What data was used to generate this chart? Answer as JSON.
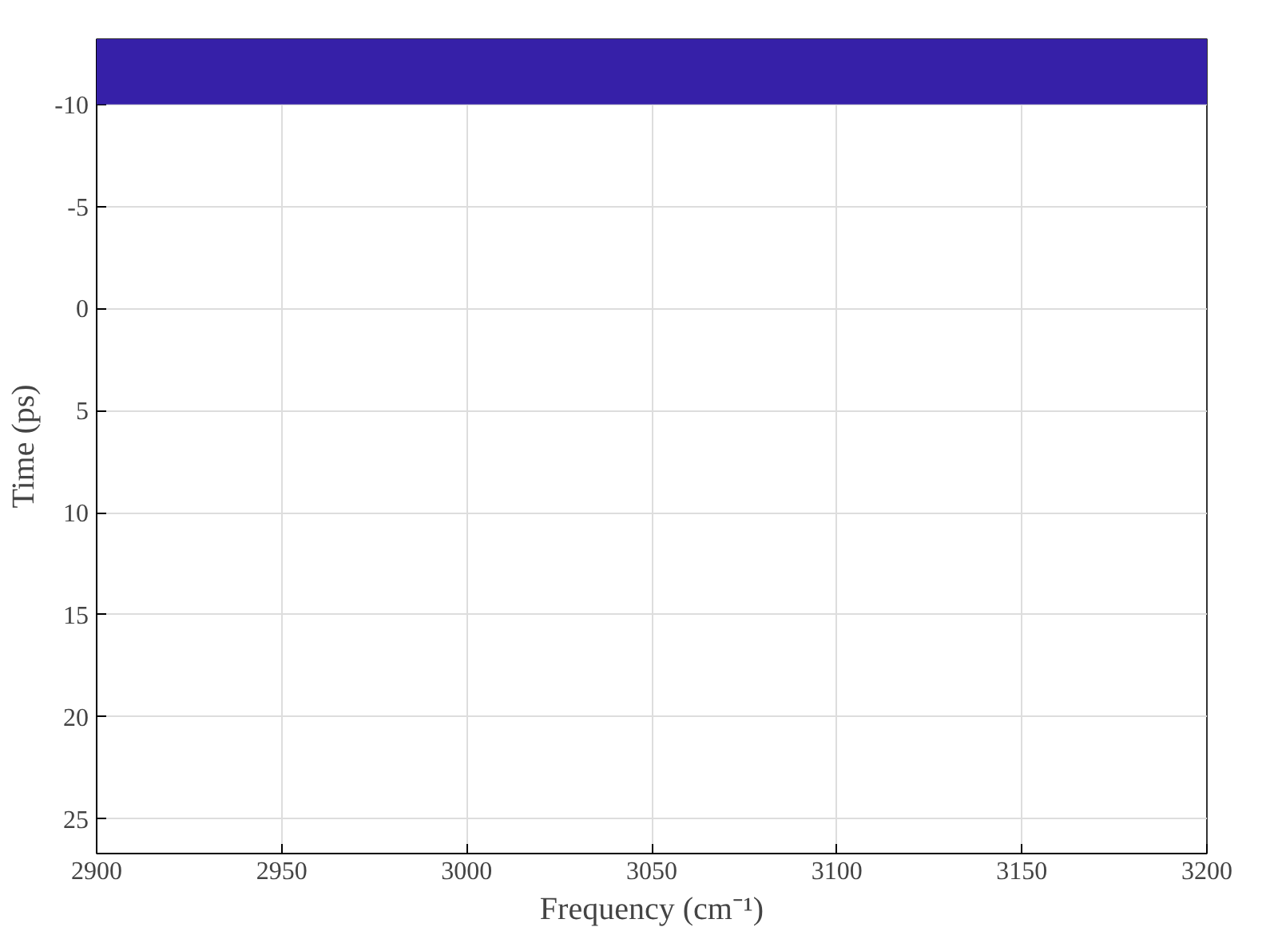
{
  "chart_data": {
    "type": "area",
    "xlabel": "Frequency (cm⁻¹)",
    "ylabel": "Time (ps)",
    "xlim": [
      2900,
      3200
    ],
    "xticks": [
      2900,
      2950,
      3000,
      3050,
      3100,
      3150,
      3200
    ],
    "ylim": [
      26.7,
      -13.2
    ],
    "yticks": [
      -10,
      -5,
      0,
      5,
      10,
      15,
      20,
      25
    ],
    "bands": [
      {
        "axis": "y",
        "from": -13.2,
        "to": -10,
        "color": "#3620a8"
      }
    ],
    "grid": true
  }
}
